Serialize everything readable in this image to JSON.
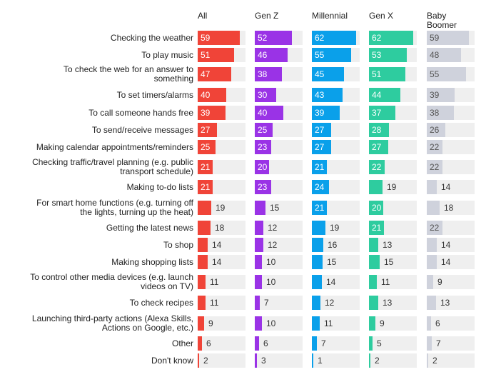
{
  "chart_data": {
    "type": "bar",
    "orientation": "horizontal",
    "grid": false,
    "legend": "none",
    "categories": [
      "Checking the weather",
      "To play music",
      "To check the web for an answer to something",
      "To set timers/alarms",
      "To call someone hands free",
      "To send/receive messages",
      "Making calendar appointments/reminders",
      "Checking traffic/travel planning (e.g. public transport schedule)",
      "Making to-do lists",
      "For smart home functions (e.g. turning off the lights, turning up the heat)",
      "Getting the latest news",
      "To shop",
      "Making shopping lists",
      "To control other media devices (e.g. launch videos on TV)",
      "To check recipes",
      "Launching third-party actions (Alexa Skills, Actions on Google, etc.)",
      "Other",
      "Don't know"
    ],
    "category_lines": [
      [
        "Checking the weather"
      ],
      [
        "To play music"
      ],
      [
        "To check the web for an answer to",
        "something"
      ],
      [
        "To set timers/alarms"
      ],
      [
        "To call someone hands free"
      ],
      [
        "To send/receive messages"
      ],
      [
        "Making calendar appointments/reminders"
      ],
      [
        "Checking traffic/travel planning (e.g. public",
        "transport schedule)"
      ],
      [
        "Making to-do lists"
      ],
      [
        "For smart home functions (e.g. turning off",
        "the lights, turning up the heat)"
      ],
      [
        "Getting the latest news"
      ],
      [
        "To shop"
      ],
      [
        "Making shopping lists"
      ],
      [
        "To control other media devices (e.g. launch",
        "videos on TV)"
      ],
      [
        "To check recipes"
      ],
      [
        "Launching third-party actions (Alexa Skills,",
        "Actions on Google, etc.)"
      ],
      [
        "Other"
      ],
      [
        "Don't know"
      ]
    ],
    "xlim": [
      0,
      67
    ],
    "series": [
      {
        "name": "All",
        "header_lines": [
          "All"
        ],
        "color": "#f04438",
        "values": [
          59,
          51,
          47,
          40,
          39,
          27,
          25,
          21,
          21,
          19,
          18,
          14,
          14,
          11,
          11,
          9,
          6,
          2
        ]
      },
      {
        "name": "Gen Z",
        "header_lines": [
          "Gen Z"
        ],
        "color": "#9a33e6",
        "values": [
          52,
          46,
          38,
          30,
          40,
          25,
          23,
          20,
          23,
          15,
          12,
          12,
          10,
          10,
          7,
          10,
          6,
          3
        ]
      },
      {
        "name": "Millennial",
        "header_lines": [
          "Millennial"
        ],
        "color": "#0aa0ea",
        "values": [
          62,
          55,
          45,
          43,
          39,
          27,
          27,
          21,
          24,
          21,
          19,
          16,
          15,
          14,
          12,
          11,
          7,
          1
        ]
      },
      {
        "name": "Gen X",
        "header_lines": [
          "Gen X"
        ],
        "color": "#2ecc9f",
        "values": [
          62,
          53,
          51,
          44,
          37,
          28,
          27,
          22,
          19,
          20,
          21,
          13,
          15,
          11,
          13,
          9,
          5,
          2
        ]
      },
      {
        "name": "Baby Boomer",
        "header_lines": [
          "Baby",
          "Boomer"
        ],
        "color": "#cfd2dc",
        "values": [
          59,
          48,
          55,
          39,
          38,
          26,
          22,
          22,
          14,
          18,
          22,
          14,
          14,
          9,
          13,
          6,
          7,
          2
        ]
      }
    ]
  }
}
